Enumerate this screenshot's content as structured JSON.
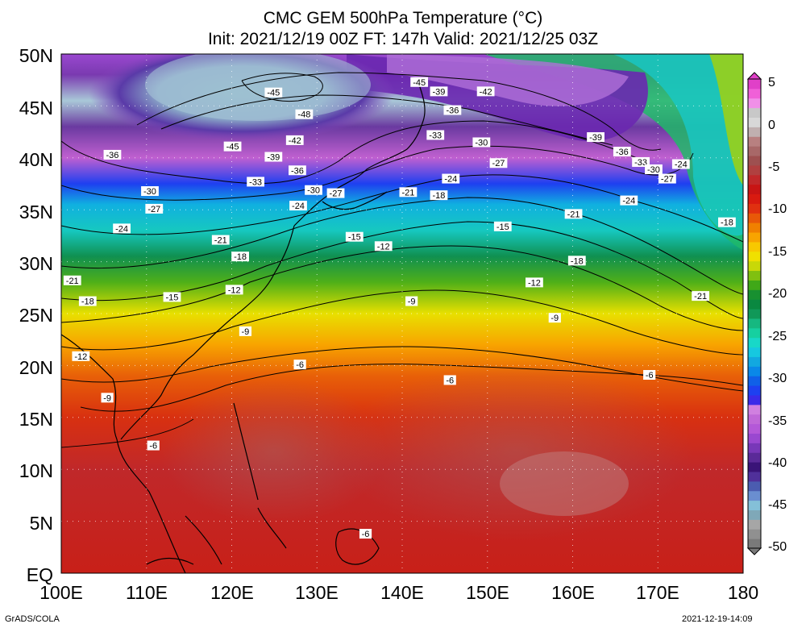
{
  "title": {
    "line1": "CMC GEM 500hPa Temperature (°C)",
    "line2": "Init: 2021/12/19 00Z  FT: 147h  Valid: 2021/12/25 03Z"
  },
  "map": {
    "lat_labels": [
      "50N",
      "45N",
      "40N",
      "35N",
      "30N",
      "25N",
      "20N",
      "15N",
      "10N",
      "5N",
      "EQ"
    ],
    "lon_labels": [
      "100E",
      "110E",
      "120E",
      "130E",
      "140E",
      "150E",
      "160E",
      "170E",
      "180"
    ],
    "lat_range": [
      0,
      50
    ],
    "lon_range": [
      100,
      180
    ],
    "grid": "dotted every 5° lat / 10° lon",
    "contour_labels": [
      {
        "text": "-45",
        "lon": 124.9,
        "lat": 46.3
      },
      {
        "text": "-48",
        "lon": 128.5,
        "lat": 44.2
      },
      {
        "text": "-45",
        "lon": 120.1,
        "lat": 41.1
      },
      {
        "text": "-42",
        "lon": 127.4,
        "lat": 41.7
      },
      {
        "text": "-39",
        "lon": 124.9,
        "lat": 40.1
      },
      {
        "text": "-36",
        "lon": 106.0,
        "lat": 40.3
      },
      {
        "text": "-36",
        "lon": 127.7,
        "lat": 38.8
      },
      {
        "text": "-33",
        "lon": 122.8,
        "lat": 37.7
      },
      {
        "text": "-30",
        "lon": 110.4,
        "lat": 36.8
      },
      {
        "text": "-30",
        "lon": 129.6,
        "lat": 36.9
      },
      {
        "text": "-27",
        "lon": 132.2,
        "lat": 36.6
      },
      {
        "text": "-24",
        "lon": 127.8,
        "lat": 35.4
      },
      {
        "text": "-27",
        "lon": 110.9,
        "lat": 35.1
      },
      {
        "text": "-24",
        "lon": 107.1,
        "lat": 33.2
      },
      {
        "text": "-21",
        "lon": 118.7,
        "lat": 32.1
      },
      {
        "text": "-18",
        "lon": 121.0,
        "lat": 30.5
      },
      {
        "text": "-21",
        "lon": 101.3,
        "lat": 28.2
      },
      {
        "text": "-18",
        "lon": 103.1,
        "lat": 26.2
      },
      {
        "text": "-15",
        "lon": 113.0,
        "lat": 26.6
      },
      {
        "text": "-12",
        "lon": 120.3,
        "lat": 27.3
      },
      {
        "text": "-12",
        "lon": 102.3,
        "lat": 20.9
      },
      {
        "text": "-9",
        "lon": 121.6,
        "lat": 23.3
      },
      {
        "text": "-9",
        "lon": 105.4,
        "lat": 16.9
      },
      {
        "text": "-6",
        "lon": 110.8,
        "lat": 12.3
      },
      {
        "text": "-15",
        "lon": 134.4,
        "lat": 32.4
      },
      {
        "text": "-12",
        "lon": 137.8,
        "lat": 31.5
      },
      {
        "text": "-9",
        "lon": 141.1,
        "lat": 26.2
      },
      {
        "text": "-21",
        "lon": 140.7,
        "lat": 36.7
      },
      {
        "text": "-18",
        "lon": 144.3,
        "lat": 36.4
      },
      {
        "text": "-15",
        "lon": 151.8,
        "lat": 33.4
      },
      {
        "text": "-12",
        "lon": 155.5,
        "lat": 28.0
      },
      {
        "text": "-9",
        "lon": 157.9,
        "lat": 24.6
      },
      {
        "text": "-6",
        "lon": 128.0,
        "lat": 20.1
      },
      {
        "text": "-6",
        "lon": 145.6,
        "lat": 18.6
      },
      {
        "text": "-6",
        "lon": 169.0,
        "lat": 19.1
      },
      {
        "text": "-6",
        "lon": 135.7,
        "lat": 3.8
      },
      {
        "text": "-45",
        "lon": 142.0,
        "lat": 47.3
      },
      {
        "text": "-39",
        "lon": 144.3,
        "lat": 46.4
      },
      {
        "text": "-42",
        "lon": 149.8,
        "lat": 46.4
      },
      {
        "text": "-36",
        "lon": 145.9,
        "lat": 44.6
      },
      {
        "text": "-33",
        "lon": 143.9,
        "lat": 42.2
      },
      {
        "text": "-30",
        "lon": 149.3,
        "lat": 41.5
      },
      {
        "text": "-27",
        "lon": 151.3,
        "lat": 39.5
      },
      {
        "text": "-24",
        "lon": 145.7,
        "lat": 38.0
      },
      {
        "text": "-39",
        "lon": 162.7,
        "lat": 42.0
      },
      {
        "text": "-36",
        "lon": 165.8,
        "lat": 40.6
      },
      {
        "text": "-33",
        "lon": 168.0,
        "lat": 39.6
      },
      {
        "text": "-30",
        "lon": 169.5,
        "lat": 38.9
      },
      {
        "text": "-27",
        "lon": 171.1,
        "lat": 38.0
      },
      {
        "text": "-24",
        "lon": 172.7,
        "lat": 39.4
      },
      {
        "text": "-24",
        "lon": 166.6,
        "lat": 35.9
      },
      {
        "text": "-21",
        "lon": 160.1,
        "lat": 34.6
      },
      {
        "text": "-18",
        "lon": 160.5,
        "lat": 30.1
      },
      {
        "text": "-18",
        "lon": 178.1,
        "lat": 33.8
      },
      {
        "text": "-21",
        "lon": 175.0,
        "lat": 26.7
      }
    ]
  },
  "colorbar": {
    "labels": [
      "5",
      "0",
      "-5",
      "-10",
      "-15",
      "-20",
      "-25",
      "-30",
      "-35",
      "-40",
      "-45",
      "-50"
    ],
    "colors": [
      "#7a7a7a",
      "#909090",
      "#a6a6a6",
      "#7fa8b8",
      "#84c0d8",
      "#6a8ed0",
      "#4b5cb0",
      "#50309a",
      "#3a1478",
      "#5a2a98",
      "#7838b8",
      "#9a48d0",
      "#b458d8",
      "#c068d8",
      "#d080e0",
      "#3a2ae8",
      "#1e40f0",
      "#1060e8",
      "#0a88e8",
      "#12a8e0",
      "#16c8e0",
      "#18d8c8",
      "#16d0a0",
      "#16b880",
      "#109858",
      "#0a8840",
      "#189030",
      "#40a818",
      "#80c010",
      "#c8d808",
      "#f0e000",
      "#f8c800",
      "#f8a400",
      "#f08000",
      "#e85808",
      "#e03010",
      "#d81a10",
      "#c81414",
      "#c0282a",
      "#b04040",
      "#9e5050",
      "#a86868",
      "#b88080",
      "#c0b0b0",
      "#d8d8d8",
      "#c8c8c8",
      "#f090e8",
      "#f060d8",
      "#e040c8"
    ],
    "min": -50,
    "max": 5
  },
  "footer": {
    "left": "GrADS/COLA",
    "right": "2021-12-19-14:09"
  }
}
